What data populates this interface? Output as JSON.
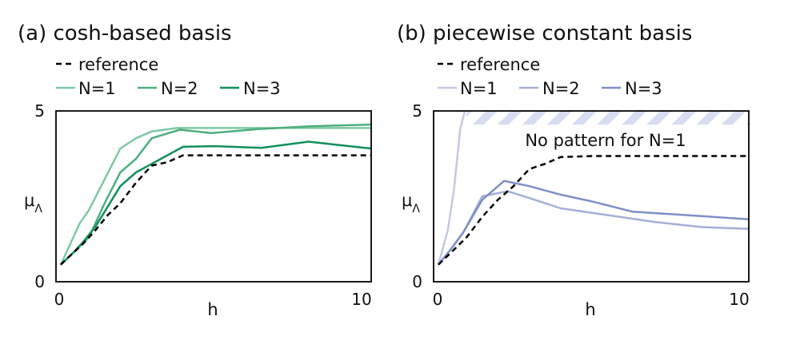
{
  "chart_data": [
    {
      "type": "line",
      "title": "(a) cosh-based basis",
      "xlabel": "h",
      "ylabel": "μ",
      "ylabel_sub": "Λ",
      "xlim": [
        0,
        10
      ],
      "ylim": [
        0,
        5
      ],
      "xticks": [
        "0",
        "10"
      ],
      "yticks": [
        "0",
        "5"
      ],
      "grid": false,
      "legend": "top-left",
      "series": [
        {
          "name": "reference",
          "style": "dashed",
          "color": "#000000",
          "x": [
            0.1,
            0.5,
            0.8,
            1.2,
            1.6,
            2.0,
            2.5,
            3.0,
            3.5,
            4.0,
            4.5,
            5.0,
            6.0,
            7.0,
            8.0,
            9.0,
            10.0
          ],
          "y": [
            0.5,
            0.85,
            1.1,
            1.5,
            1.95,
            2.3,
            2.9,
            3.4,
            3.5,
            3.7,
            3.7,
            3.7,
            3.7,
            3.7,
            3.7,
            3.7,
            3.7
          ]
        },
        {
          "name": "N=1",
          "style": "solid",
          "color": "#7fc9a3",
          "x": [
            0.1,
            0.5,
            0.7,
            1.0,
            1.5,
            2.0,
            2.5,
            3.0,
            3.8,
            5.0,
            6.5,
            8.0,
            10.0
          ],
          "y": [
            0.5,
            1.3,
            1.7,
            2.1,
            3.0,
            3.9,
            4.2,
            4.4,
            4.5,
            4.5,
            4.5,
            4.5,
            4.5
          ]
        },
        {
          "name": "N=2",
          "style": "solid",
          "color": "#4daf7e",
          "x": [
            0.1,
            0.5,
            1.0,
            1.5,
            2.0,
            2.5,
            3.0,
            3.9,
            4.9,
            6.4,
            8.0,
            10.0
          ],
          "y": [
            0.5,
            0.85,
            1.3,
            2.3,
            3.2,
            3.6,
            4.2,
            4.45,
            4.35,
            4.47,
            4.55,
            4.6
          ]
        },
        {
          "name": "N=3",
          "style": "solid",
          "color": "#11905a",
          "x": [
            0.1,
            0.5,
            0.8,
            1.2,
            2.0,
            2.5,
            3.0,
            4.0,
            5.0,
            6.5,
            8.0,
            10.0
          ],
          "y": [
            0.5,
            0.85,
            1.15,
            1.6,
            2.8,
            3.2,
            3.45,
            3.95,
            3.97,
            3.92,
            4.1,
            3.9
          ]
        }
      ]
    },
    {
      "type": "line",
      "title": "(b) piecewise constant basis",
      "xlabel": "h",
      "ylabel": "μ",
      "ylabel_sub": "Λ",
      "xlim": [
        0,
        10
      ],
      "ylim": [
        0,
        5
      ],
      "xticks": [
        "0",
        "10"
      ],
      "yticks": [
        "0",
        "5"
      ],
      "grid": false,
      "legend": "top-left",
      "annotation": "No pattern for N=1",
      "hatch_band_y": [
        4.6,
        5.0
      ],
      "hatch_band_x_start": 1.0,
      "hatch_color": "#d7dcf0",
      "series": [
        {
          "name": "reference",
          "style": "dashed",
          "color": "#000000",
          "x": [
            0.1,
            0.5,
            1.0,
            1.5,
            2.0,
            2.5,
            3.0,
            3.5,
            4.0,
            5.0,
            6.0,
            7.0,
            8.0,
            9.0,
            10.0
          ],
          "y": [
            0.5,
            0.85,
            1.3,
            1.9,
            2.4,
            2.8,
            3.3,
            3.45,
            3.65,
            3.68,
            3.68,
            3.68,
            3.68,
            3.68,
            3.68
          ]
        },
        {
          "name": "N=1",
          "style": "solid",
          "color": "#c3c9e5",
          "x": [
            0.1,
            0.4,
            0.6,
            0.8,
            0.95
          ],
          "y": [
            0.5,
            1.5,
            2.7,
            4.5,
            5.0
          ]
        },
        {
          "name": "N=2",
          "style": "solid",
          "color": "#a4afd8",
          "x": [
            0.1,
            0.5,
            0.9,
            1.5,
            2.3,
            3.0,
            4.0,
            5.5,
            7.0,
            8.5,
            10.0
          ],
          "y": [
            0.5,
            0.95,
            1.45,
            2.5,
            2.65,
            2.45,
            2.15,
            1.95,
            1.75,
            1.6,
            1.55
          ]
        },
        {
          "name": "N=3",
          "style": "solid",
          "color": "#7f8fc9",
          "x": [
            0.1,
            0.5,
            0.9,
            1.5,
            2.2,
            3.0,
            4.0,
            5.0,
            6.3,
            8.0,
            10.0
          ],
          "y": [
            0.5,
            0.95,
            1.45,
            2.4,
            2.95,
            2.8,
            2.55,
            2.35,
            2.05,
            1.95,
            1.83
          ]
        }
      ]
    }
  ]
}
